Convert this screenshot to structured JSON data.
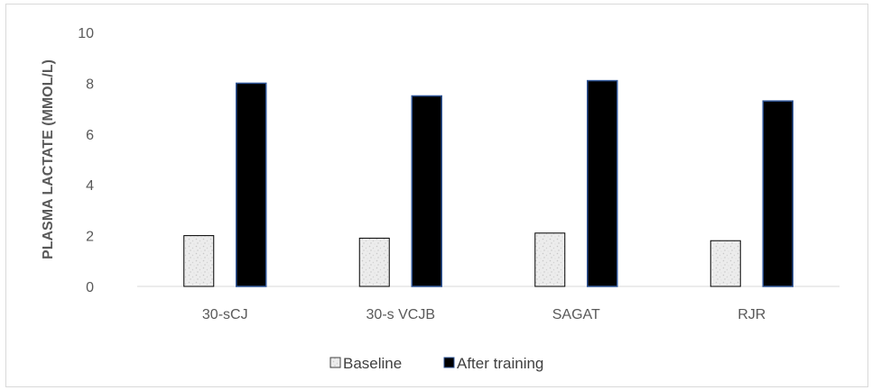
{
  "chart_data": {
    "type": "bar",
    "title": "",
    "xlabel": "",
    "ylabel": "PLASMA LACTATE (MMOL/L)",
    "ylim": [
      0,
      10
    ],
    "yticks": [
      "0",
      "2",
      "4",
      "6",
      "8",
      "10"
    ],
    "grid": false,
    "legend_position": "bottom",
    "categories": [
      "30-sCJ",
      "30-s VCJB",
      "SAGAT",
      "RJR"
    ],
    "series": [
      {
        "name": "Baseline",
        "values": [
          2.0,
          1.9,
          2.1,
          1.8
        ],
        "color": "#e6e6e6",
        "pattern": "light-speckle"
      },
      {
        "name": "After training",
        "values": [
          8.0,
          7.5,
          8.1,
          7.3
        ],
        "color": "#000000",
        "edge_color": "#2f5597"
      }
    ]
  }
}
